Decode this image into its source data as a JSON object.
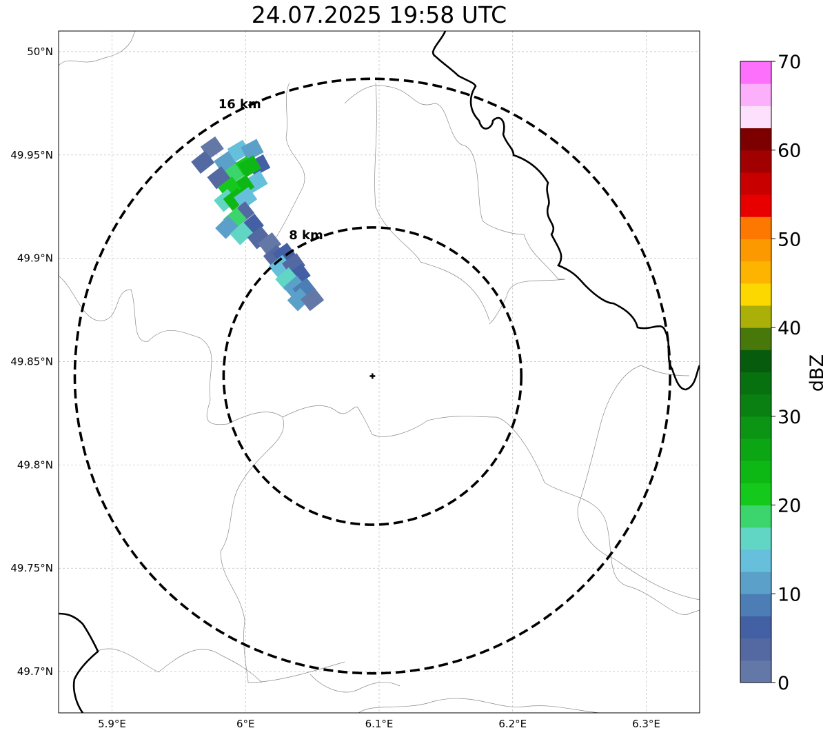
{
  "title": "24.07.2025 19:58 UTC",
  "map": {
    "lon_range": [
      5.86,
      6.34
    ],
    "lat_range": [
      49.68,
      50.01
    ],
    "lon_ticks": [
      {
        "value": 5.9,
        "label": "5.9°E"
      },
      {
        "value": 6.0,
        "label": "6°E"
      },
      {
        "value": 6.1,
        "label": "6.1°E"
      },
      {
        "value": 6.2,
        "label": "6.2°E"
      },
      {
        "value": 6.3,
        "label": "6.3°E"
      }
    ],
    "lat_ticks": [
      {
        "value": 50.0,
        "label": "50°N"
      },
      {
        "value": 49.95,
        "label": "49.95°N"
      },
      {
        "value": 49.9,
        "label": "49.9°N"
      },
      {
        "value": 49.85,
        "label": "49.85°N"
      },
      {
        "value": 49.8,
        "label": "49.8°N"
      },
      {
        "value": 49.75,
        "label": "49.75°N"
      },
      {
        "value": 49.7,
        "label": "49.7°N"
      }
    ],
    "grid": true,
    "radar_center": {
      "lon": 6.095,
      "lat": 49.843
    },
    "range_rings": [
      {
        "radius_km": 8,
        "label": "8 km"
      },
      {
        "radius_km": 16,
        "label": "16 km"
      }
    ],
    "echoes": [
      {
        "lon": 5.975,
        "lat": 49.9535,
        "dbz": 2
      },
      {
        "lon": 5.968,
        "lat": 49.9465,
        "dbz": 4
      },
      {
        "lon": 5.985,
        "lat": 49.9465,
        "dbz": 10
      },
      {
        "lon": 5.995,
        "lat": 49.952,
        "dbz": 14
      },
      {
        "lon": 6.005,
        "lat": 49.9525,
        "dbz": 12
      },
      {
        "lon": 6.01,
        "lat": 49.945,
        "dbz": 6
      },
      {
        "lon": 5.998,
        "lat": 49.944,
        "dbz": 22
      },
      {
        "lon": 6.003,
        "lat": 49.9445,
        "dbz": 24
      },
      {
        "lon": 5.99,
        "lat": 49.9405,
        "dbz": 18
      },
      {
        "lon": 5.98,
        "lat": 49.939,
        "dbz": 4
      },
      {
        "lon": 6.008,
        "lat": 49.937,
        "dbz": 14
      },
      {
        "lon": 5.998,
        "lat": 49.935,
        "dbz": 24
      },
      {
        "lon": 5.988,
        "lat": 49.934,
        "dbz": 22
      },
      {
        "lon": 5.985,
        "lat": 49.928,
        "dbz": 16
      },
      {
        "lon": 5.992,
        "lat": 49.9285,
        "dbz": 24
      },
      {
        "lon": 6.0,
        "lat": 49.929,
        "dbz": 14
      },
      {
        "lon": 5.998,
        "lat": 49.922,
        "dbz": 4
      },
      {
        "lon": 5.992,
        "lat": 49.919,
        "dbz": 18
      },
      {
        "lon": 5.986,
        "lat": 49.915,
        "dbz": 12
      },
      {
        "lon": 6.005,
        "lat": 49.916,
        "dbz": 6
      },
      {
        "lon": 5.997,
        "lat": 49.912,
        "dbz": 16
      },
      {
        "lon": 6.01,
        "lat": 49.91,
        "dbz": 4
      },
      {
        "lon": 6.018,
        "lat": 49.907,
        "dbz": 2
      },
      {
        "lon": 6.022,
        "lat": 49.901,
        "dbz": 4
      },
      {
        "lon": 6.029,
        "lat": 49.902,
        "dbz": 6
      },
      {
        "lon": 6.026,
        "lat": 49.896,
        "dbz": 14
      },
      {
        "lon": 6.036,
        "lat": 49.897,
        "dbz": 4
      },
      {
        "lon": 6.04,
        "lat": 49.892,
        "dbz": 6
      },
      {
        "lon": 6.031,
        "lat": 49.89,
        "dbz": 16
      },
      {
        "lon": 6.037,
        "lat": 49.886,
        "dbz": 10
      },
      {
        "lon": 6.044,
        "lat": 49.885,
        "dbz": 8
      },
      {
        "lon": 6.04,
        "lat": 49.88,
        "dbz": 12
      },
      {
        "lon": 6.05,
        "lat": 49.88,
        "dbz": 2
      }
    ]
  },
  "colorbar": {
    "label": "dBZ",
    "min": 0,
    "max": 70,
    "step": 2.5,
    "ticks": [
      {
        "value": 0,
        "label": "0"
      },
      {
        "value": 10,
        "label": "10"
      },
      {
        "value": 20,
        "label": "20"
      },
      {
        "value": 30,
        "label": "30"
      },
      {
        "value": 40,
        "label": "40"
      },
      {
        "value": 50,
        "label": "50"
      },
      {
        "value": 60,
        "label": "60"
      },
      {
        "value": 70,
        "label": "70"
      }
    ],
    "colors": [
      "#6478a8",
      "#5469a2",
      "#4360a4",
      "#4c7db4",
      "#5aa0c8",
      "#66c0dc",
      "#62d6c4",
      "#3cd46c",
      "#14c81c",
      "#0eb814",
      "#0ca614",
      "#0c9414",
      "#0a8012",
      "#07700f",
      "#065c0c",
      "#48780a",
      "#aab008",
      "#fcd800",
      "#fcb400",
      "#fc9800",
      "#fc7800",
      "#e80000",
      "#c80000",
      "#a00000",
      "#7c0000",
      "#fde0fc",
      "#fcb0fc",
      "#fc70fc",
      "#f038f0"
    ]
  }
}
